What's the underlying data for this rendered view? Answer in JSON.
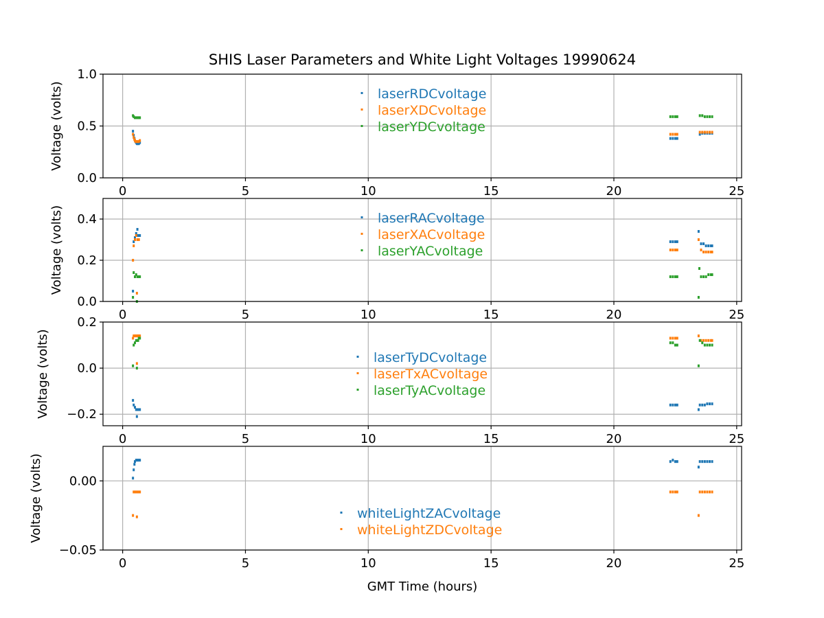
{
  "figure": {
    "title": "SHIS Laser Parameters and White Light Voltages 19990624",
    "xlabel": "GMT Time (hours)"
  },
  "colors": {
    "blue": "#1f77b4",
    "orange": "#ff7f0e",
    "green": "#2ca02c",
    "grid": "#b0b0b0"
  },
  "chart_data": [
    {
      "type": "scatter",
      "ylabel": "Voltage (volts)",
      "xlim": [
        -0.8,
        25.2
      ],
      "ylim": [
        0.0,
        1.0
      ],
      "x_ticks": [
        0,
        5,
        10,
        15,
        20,
        25
      ],
      "y_ticks": [
        0.0,
        0.5,
        1.0
      ],
      "y_tick_labels": [
        "0.0",
        "0.5",
        "1.0"
      ],
      "grid": true,
      "legend_position": "upper center",
      "series": [
        {
          "name": "laserRDCvoltage",
          "color": "#1f77b4",
          "points": [
            [
              0.42,
              0.45
            ],
            [
              0.45,
              0.41
            ],
            [
              0.48,
              0.38
            ],
            [
              0.5,
              0.36
            ],
            [
              0.52,
              0.35
            ],
            [
              0.55,
              0.34
            ],
            [
              0.58,
              0.33
            ],
            [
              0.6,
              0.33
            ],
            [
              0.63,
              0.33
            ],
            [
              0.66,
              0.33
            ],
            [
              0.7,
              0.34
            ],
            [
              22.3,
              0.38
            ],
            [
              22.4,
              0.38
            ],
            [
              22.5,
              0.38
            ],
            [
              22.58,
              0.38
            ],
            [
              23.5,
              0.42
            ],
            [
              23.6,
              0.43
            ],
            [
              23.7,
              0.43
            ],
            [
              23.8,
              0.43
            ],
            [
              23.9,
              0.43
            ],
            [
              24.0,
              0.43
            ]
          ]
        },
        {
          "name": "laserXDCvoltage",
          "color": "#ff7f0e",
          "points": [
            [
              0.42,
              0.42
            ],
            [
              0.45,
              0.39
            ],
            [
              0.48,
              0.37
            ],
            [
              0.5,
              0.36
            ],
            [
              0.53,
              0.35
            ],
            [
              0.56,
              0.35
            ],
            [
              0.6,
              0.35
            ],
            [
              0.63,
              0.35
            ],
            [
              0.66,
              0.35
            ],
            [
              0.7,
              0.36
            ],
            [
              22.3,
              0.42
            ],
            [
              22.4,
              0.42
            ],
            [
              22.5,
              0.42
            ],
            [
              22.58,
              0.42
            ],
            [
              23.5,
              0.44
            ],
            [
              23.6,
              0.44
            ],
            [
              23.7,
              0.44
            ],
            [
              23.8,
              0.44
            ],
            [
              23.9,
              0.44
            ],
            [
              24.0,
              0.44
            ]
          ]
        },
        {
          "name": "laserYDCvoltage",
          "color": "#2ca02c",
          "points": [
            [
              0.42,
              0.6
            ],
            [
              0.45,
              0.59
            ],
            [
              0.5,
              0.58
            ],
            [
              0.55,
              0.58
            ],
            [
              0.6,
              0.58
            ],
            [
              0.65,
              0.58
            ],
            [
              0.7,
              0.58
            ],
            [
              22.3,
              0.59
            ],
            [
              22.4,
              0.59
            ],
            [
              22.5,
              0.59
            ],
            [
              22.58,
              0.59
            ],
            [
              23.5,
              0.6
            ],
            [
              23.6,
              0.6
            ],
            [
              23.7,
              0.59
            ],
            [
              23.8,
              0.59
            ],
            [
              23.9,
              0.59
            ],
            [
              24.0,
              0.59
            ]
          ]
        }
      ]
    },
    {
      "type": "scatter",
      "ylabel": "Voltage (volts)",
      "xlim": [
        -0.8,
        25.2
      ],
      "ylim": [
        0.0,
        0.5
      ],
      "x_ticks": [
        0,
        5,
        10,
        15,
        20,
        25
      ],
      "y_ticks": [
        0.0,
        0.2,
        0.4
      ],
      "y_tick_labels": [
        "0.0",
        "0.2",
        "0.4"
      ],
      "grid": true,
      "legend_position": "upper center",
      "series": [
        {
          "name": "laserRACvoltage",
          "color": "#1f77b4",
          "points": [
            [
              0.42,
              0.05
            ],
            [
              0.45,
              0.29
            ],
            [
              0.5,
              0.31
            ],
            [
              0.55,
              0.33
            ],
            [
              0.6,
              0.35
            ],
            [
              0.62,
              0.32
            ],
            [
              0.66,
              0.32
            ],
            [
              0.7,
              0.32
            ],
            [
              22.3,
              0.29
            ],
            [
              22.4,
              0.29
            ],
            [
              22.5,
              0.29
            ],
            [
              22.58,
              0.29
            ],
            [
              23.45,
              0.34
            ],
            [
              23.55,
              0.28
            ],
            [
              23.65,
              0.28
            ],
            [
              23.75,
              0.27
            ],
            [
              23.85,
              0.27
            ],
            [
              23.95,
              0.27
            ],
            [
              24.0,
              0.27
            ]
          ]
        },
        {
          "name": "laserXACvoltage",
          "color": "#ff7f0e",
          "points": [
            [
              0.42,
              0.2
            ],
            [
              0.45,
              0.27
            ],
            [
              0.5,
              0.3
            ],
            [
              0.55,
              0.32
            ],
            [
              0.58,
              0.04
            ],
            [
              0.6,
              0.3
            ],
            [
              0.63,
              0.3
            ],
            [
              0.66,
              0.3
            ],
            [
              22.3,
              0.25
            ],
            [
              22.4,
              0.25
            ],
            [
              22.5,
              0.25
            ],
            [
              22.58,
              0.25
            ],
            [
              23.45,
              0.3
            ],
            [
              23.55,
              0.25
            ],
            [
              23.65,
              0.24
            ],
            [
              23.75,
              0.24
            ],
            [
              23.85,
              0.24
            ],
            [
              23.95,
              0.24
            ],
            [
              24.0,
              0.24
            ]
          ]
        },
        {
          "name": "laserYACvoltage",
          "color": "#2ca02c",
          "points": [
            [
              0.42,
              0.02
            ],
            [
              0.45,
              0.14
            ],
            [
              0.5,
              0.12
            ],
            [
              0.55,
              0.13
            ],
            [
              0.58,
              0.0
            ],
            [
              0.6,
              0.12
            ],
            [
              0.66,
              0.12
            ],
            [
              0.7,
              0.12
            ],
            [
              22.3,
              0.12
            ],
            [
              22.4,
              0.12
            ],
            [
              22.5,
              0.12
            ],
            [
              22.58,
              0.12
            ],
            [
              23.45,
              0.02
            ],
            [
              23.48,
              0.16
            ],
            [
              23.55,
              0.12
            ],
            [
              23.65,
              0.12
            ],
            [
              23.75,
              0.12
            ],
            [
              23.85,
              0.13
            ],
            [
              23.95,
              0.13
            ],
            [
              24.0,
              0.13
            ]
          ]
        }
      ]
    },
    {
      "type": "scatter",
      "ylabel": "Voltage (volts)",
      "xlim": [
        -0.8,
        25.2
      ],
      "ylim": [
        -0.25,
        0.2
      ],
      "x_ticks": [
        0,
        5,
        10,
        15,
        20,
        25
      ],
      "y_ticks": [
        -0.2,
        0.0,
        0.2
      ],
      "y_tick_labels": [
        "−0.2",
        "0.0",
        "0.2"
      ],
      "grid": true,
      "legend_position": "center",
      "series": [
        {
          "name": "laserTyDCvoltage",
          "color": "#1f77b4",
          "points": [
            [
              0.42,
              -0.14
            ],
            [
              0.45,
              -0.16
            ],
            [
              0.5,
              -0.17
            ],
            [
              0.55,
              -0.18
            ],
            [
              0.58,
              -0.21
            ],
            [
              0.6,
              -0.18
            ],
            [
              0.63,
              -0.18
            ],
            [
              0.66,
              -0.18
            ],
            [
              0.7,
              -0.18
            ],
            [
              22.3,
              -0.16
            ],
            [
              22.4,
              -0.16
            ],
            [
              22.5,
              -0.16
            ],
            [
              22.58,
              -0.16
            ],
            [
              23.45,
              -0.18
            ],
            [
              23.5,
              -0.16
            ],
            [
              23.6,
              -0.16
            ],
            [
              23.7,
              -0.16
            ],
            [
              23.8,
              -0.155
            ],
            [
              23.9,
              -0.155
            ],
            [
              24.0,
              -0.155
            ]
          ]
        },
        {
          "name": "laserTxACvoltage",
          "color": "#ff7f0e",
          "points": [
            [
              0.42,
              0.13
            ],
            [
              0.45,
              0.14
            ],
            [
              0.5,
              0.14
            ],
            [
              0.55,
              0.14
            ],
            [
              0.58,
              0.02
            ],
            [
              0.6,
              0.14
            ],
            [
              0.63,
              0.14
            ],
            [
              0.66,
              0.14
            ],
            [
              0.7,
              0.14
            ],
            [
              22.3,
              0.13
            ],
            [
              22.4,
              0.13
            ],
            [
              22.5,
              0.13
            ],
            [
              22.58,
              0.13
            ],
            [
              23.45,
              0.14
            ],
            [
              23.55,
              0.12
            ],
            [
              23.65,
              0.12
            ],
            [
              23.75,
              0.12
            ],
            [
              23.85,
              0.12
            ],
            [
              23.95,
              0.12
            ],
            [
              24.0,
              0.12
            ]
          ]
        },
        {
          "name": "laserTyACvoltage",
          "color": "#2ca02c",
          "points": [
            [
              0.42,
              0.01
            ],
            [
              0.45,
              0.1
            ],
            [
              0.5,
              0.11
            ],
            [
              0.55,
              0.12
            ],
            [
              0.58,
              0.0
            ],
            [
              0.6,
              0.12
            ],
            [
              0.63,
              0.12
            ],
            [
              0.66,
              0.13
            ],
            [
              0.7,
              0.13
            ],
            [
              22.3,
              0.11
            ],
            [
              22.4,
              0.11
            ],
            [
              22.5,
              0.1
            ],
            [
              22.58,
              0.1
            ],
            [
              23.45,
              0.01
            ],
            [
              23.5,
              0.12
            ],
            [
              23.6,
              0.11
            ],
            [
              23.7,
              0.1
            ],
            [
              23.8,
              0.1
            ],
            [
              23.9,
              0.1
            ],
            [
              24.0,
              0.1
            ]
          ]
        }
      ]
    },
    {
      "type": "scatter",
      "ylabel": "Voltage (volts)",
      "xlim": [
        -0.8,
        25.2
      ],
      "ylim": [
        -0.05,
        0.025
      ],
      "x_ticks": [
        0,
        5,
        10,
        15,
        20,
        25
      ],
      "y_ticks": [
        -0.05,
        0.0
      ],
      "y_tick_labels": [
        "−0.05",
        "0.00"
      ],
      "grid": true,
      "legend_position": "lower center",
      "series": [
        {
          "name": "whiteLightZACvoltage",
          "color": "#1f77b4",
          "points": [
            [
              0.42,
              0.002
            ],
            [
              0.45,
              0.008
            ],
            [
              0.48,
              0.012
            ],
            [
              0.5,
              0.014
            ],
            [
              0.55,
              0.015
            ],
            [
              0.6,
              0.015
            ],
            [
              0.65,
              0.015
            ],
            [
              0.7,
              0.015
            ],
            [
              22.3,
              0.014
            ],
            [
              22.4,
              0.015
            ],
            [
              22.5,
              0.014
            ],
            [
              22.58,
              0.014
            ],
            [
              23.45,
              0.01
            ],
            [
              23.5,
              0.014
            ],
            [
              23.6,
              0.014
            ],
            [
              23.7,
              0.014
            ],
            [
              23.8,
              0.014
            ],
            [
              23.9,
              0.014
            ],
            [
              24.0,
              0.014
            ]
          ]
        },
        {
          "name": "whiteLightZDCvoltage",
          "color": "#ff7f0e",
          "points": [
            [
              0.42,
              -0.025
            ],
            [
              0.45,
              -0.008
            ],
            [
              0.5,
              -0.008
            ],
            [
              0.55,
              -0.008
            ],
            [
              0.58,
              -0.026
            ],
            [
              0.6,
              -0.008
            ],
            [
              0.65,
              -0.008
            ],
            [
              0.7,
              -0.008
            ],
            [
              22.3,
              -0.008
            ],
            [
              22.4,
              -0.008
            ],
            [
              22.5,
              -0.008
            ],
            [
              22.58,
              -0.008
            ],
            [
              23.45,
              -0.025
            ],
            [
              23.5,
              -0.008
            ],
            [
              23.6,
              -0.008
            ],
            [
              23.7,
              -0.008
            ],
            [
              23.8,
              -0.008
            ],
            [
              23.9,
              -0.008
            ],
            [
              24.0,
              -0.008
            ]
          ]
        }
      ]
    }
  ]
}
